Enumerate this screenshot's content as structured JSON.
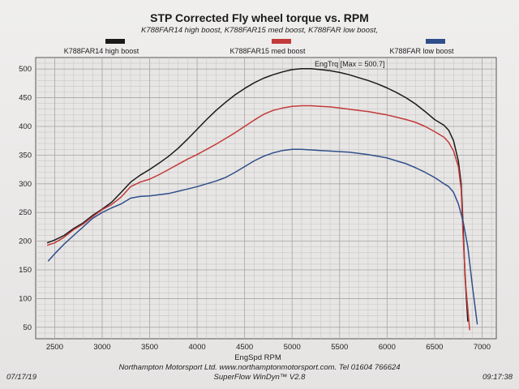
{
  "header": {
    "title": "STP Corrected Fly wheel torque vs. RPM",
    "subtitle": "K788FAR14 high boost, K788FAR15 med boost, K788FAR low boost,"
  },
  "footer": {
    "line1": "Northampton Motorsport Ltd.  www.northamptonmotorsport.com.  Tel 01604 766624",
    "line2": "SuperFlow WinDyn™ V2.8",
    "date": "07/17/19",
    "time": "09:17:38"
  },
  "chart_data": {
    "type": "line",
    "title": "STP Corrected Fly wheel torque vs. RPM",
    "xlabel": "EngSpd  RPM",
    "ylabel": "",
    "xlim": [
      2300,
      7150
    ],
    "ylim": [
      30,
      520
    ],
    "xticks": [
      2500,
      3000,
      3500,
      4000,
      4500,
      5000,
      5500,
      6000,
      6500,
      7000
    ],
    "yticks": [
      50,
      100,
      150,
      200,
      250,
      300,
      350,
      400,
      450,
      500
    ],
    "grid": true,
    "legend_position": "top",
    "annotation": "EngTrq [Max = 500.7]",
    "series": [
      {
        "name": "K788FAR14 high boost",
        "color": "#1a1a1a",
        "x": [
          2420,
          2500,
          2600,
          2700,
          2800,
          2900,
          3000,
          3100,
          3200,
          3300,
          3400,
          3500,
          3600,
          3700,
          3800,
          3900,
          4000,
          4100,
          4200,
          4300,
          4400,
          4500,
          4600,
          4700,
          4800,
          4900,
          5000,
          5100,
          5200,
          5300,
          5400,
          5500,
          5600,
          5700,
          5800,
          5900,
          6000,
          6100,
          6200,
          6300,
          6400,
          6500,
          6600,
          6650,
          6700,
          6750,
          6780,
          6800,
          6820,
          6850
        ],
        "values": [
          197,
          202,
          210,
          222,
          232,
          245,
          256,
          268,
          285,
          303,
          315,
          325,
          336,
          348,
          362,
          378,
          395,
          412,
          428,
          442,
          455,
          466,
          476,
          484,
          490,
          495,
          499,
          500.7,
          500.5,
          499,
          497,
          494,
          490,
          485,
          480,
          474,
          467,
          459,
          450,
          439,
          426,
          412,
          402,
          393,
          375,
          340,
          300,
          230,
          140,
          60
        ]
      },
      {
        "name": "K788FAR15 med boost",
        "color": "#c23a3a",
        "x": [
          2420,
          2500,
          2600,
          2700,
          2800,
          2900,
          3000,
          3100,
          3200,
          3300,
          3400,
          3500,
          3600,
          3700,
          3800,
          3900,
          4000,
          4100,
          4200,
          4300,
          4400,
          4500,
          4600,
          4700,
          4800,
          4900,
          5000,
          5100,
          5200,
          5300,
          5400,
          5500,
          5600,
          5700,
          5800,
          5900,
          6000,
          6100,
          6200,
          6300,
          6400,
          6500,
          6600,
          6650,
          6700,
          6750,
          6780,
          6800,
          6830,
          6870
        ],
        "values": [
          193,
          197,
          207,
          220,
          230,
          243,
          255,
          264,
          277,
          295,
          303,
          308,
          316,
          325,
          334,
          343,
          351,
          360,
          369,
          379,
          389,
          400,
          411,
          421,
          428,
          432,
          435,
          436,
          436,
          435,
          434,
          432,
          430,
          428,
          426,
          423,
          420,
          416,
          412,
          407,
          400,
          391,
          381,
          372,
          357,
          330,
          290,
          210,
          120,
          45
        ]
      },
      {
        "name": "K788FAR low boost",
        "color": "#2f4f8a",
        "x": [
          2430,
          2500,
          2600,
          2700,
          2800,
          2900,
          3000,
          3100,
          3200,
          3300,
          3400,
          3500,
          3600,
          3700,
          3800,
          3900,
          4000,
          4100,
          4200,
          4300,
          4400,
          4500,
          4600,
          4700,
          4800,
          4900,
          5000,
          5100,
          5200,
          5300,
          5400,
          5500,
          5600,
          5700,
          5800,
          5900,
          6000,
          6100,
          6200,
          6300,
          6400,
          6500,
          6600,
          6650,
          6700,
          6750,
          6800,
          6850,
          6900,
          6950
        ],
        "values": [
          165,
          178,
          195,
          210,
          225,
          240,
          250,
          258,
          265,
          275,
          278,
          279,
          281,
          283,
          287,
          291,
          295,
          300,
          305,
          311,
          320,
          330,
          340,
          348,
          354,
          358,
          360,
          360,
          359,
          358,
          357,
          356,
          355,
          353,
          351,
          348,
          345,
          340,
          335,
          328,
          320,
          311,
          300,
          295,
          285,
          265,
          235,
          190,
          120,
          55
        ]
      }
    ]
  }
}
